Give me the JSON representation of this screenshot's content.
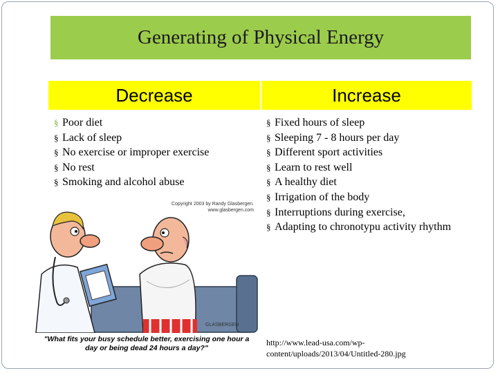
{
  "title": "Generating of Physical Energy",
  "columns": {
    "decrease": {
      "header": "Decrease",
      "items": [
        "Poor diet",
        "Lack of sleep",
        "No exercise or improper exercise",
        "No rest",
        "Smoking and alcohol abuse"
      ]
    },
    "increase": {
      "header": "Increase",
      "items": [
        "Fixed hours of sleep",
        "Sleeping 7 - 8 hours per day",
        "Different sport activities",
        "Learn to rest well",
        "A healthy diet",
        "Irrigation of the body",
        "Interruptions during exercise,",
        "Adapting to chronotypu activity rhythm"
      ]
    }
  },
  "bullet": "§",
  "cartoon": {
    "copyright": "Copyright 2003 by Randy Glasbergen.",
    "site": "www.glasbergen.com",
    "signature": "GLASBERGEN",
    "caption": "\"What fits your busy schedule better, exercising one hour a day or being dead 24 hours a day?\""
  },
  "source_url": "http://www.lead-usa.com/wp-content/uploads/2013/04/Untitled-280.jpg",
  "colors": {
    "title_bar": "#9ccc4c",
    "column_header": "#ffff00",
    "first_bullet": "#7bb03a"
  }
}
